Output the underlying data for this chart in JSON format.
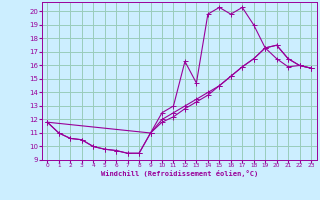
{
  "bg_color": "#cceeff",
  "grid_color": "#99ccbb",
  "line_color": "#990099",
  "xlabel": "Windchill (Refroidissement éolien,°C)",
  "xlim": [
    -0.5,
    23.5
  ],
  "ylim": [
    9.0,
    20.7
  ],
  "yticks": [
    9,
    10,
    11,
    12,
    13,
    14,
    15,
    16,
    17,
    18,
    19,
    20
  ],
  "xticks": [
    0,
    1,
    2,
    3,
    4,
    5,
    6,
    7,
    8,
    9,
    10,
    11,
    12,
    13,
    14,
    15,
    16,
    17,
    18,
    19,
    20,
    21,
    22,
    23
  ],
  "line1_x": [
    0,
    1,
    2,
    3,
    4,
    5,
    6,
    7,
    8,
    9,
    10,
    11,
    12,
    13,
    14,
    15,
    16,
    17,
    18,
    19,
    20,
    21,
    22,
    23
  ],
  "line1_y": [
    11.8,
    11.0,
    10.6,
    10.5,
    10.0,
    9.8,
    9.7,
    9.5,
    9.5,
    11.0,
    12.5,
    13.0,
    16.3,
    14.7,
    19.8,
    20.3,
    19.8,
    20.3,
    19.0,
    17.3,
    16.5,
    15.9,
    16.0,
    15.8
  ],
  "line2_x": [
    0,
    9,
    10,
    11,
    12,
    13,
    14,
    15,
    16,
    17,
    18,
    19,
    20,
    21,
    22,
    23
  ],
  "line2_y": [
    11.8,
    11.0,
    11.8,
    12.2,
    12.8,
    13.3,
    13.8,
    14.5,
    15.2,
    15.9,
    16.5,
    17.3,
    17.5,
    16.5,
    16.0,
    15.8
  ],
  "line3_x": [
    0,
    1,
    2,
    3,
    4,
    5,
    6,
    7,
    8,
    9,
    10,
    11,
    12,
    13,
    14,
    15,
    16,
    17,
    18,
    19,
    20,
    21,
    22,
    23
  ],
  "line3_y": [
    11.8,
    11.0,
    10.6,
    10.5,
    10.0,
    9.8,
    9.7,
    9.5,
    9.5,
    11.0,
    12.0,
    12.5,
    13.0,
    13.5,
    14.0,
    14.5,
    15.2,
    15.9,
    16.5,
    17.3,
    17.5,
    16.5,
    16.0,
    15.8
  ]
}
